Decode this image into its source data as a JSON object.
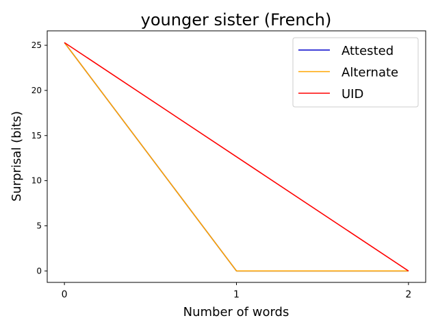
{
  "chart_data": {
    "type": "line",
    "title": "younger sister (French)",
    "xlabel": "Number of words",
    "ylabel": "Surprisal (bits)",
    "xlim": [
      -0.1,
      2.1
    ],
    "ylim": [
      -1.27,
      26.6
    ],
    "xticks": [
      0,
      1,
      2
    ],
    "xtick_labels": [
      "0",
      "1",
      "2"
    ],
    "yticks": [
      0,
      5,
      10,
      15,
      20,
      25
    ],
    "ytick_labels": [
      "0",
      "5",
      "10",
      "15",
      "20",
      "25"
    ],
    "grid": false,
    "legend_position": "top-right",
    "series": [
      {
        "name": "Attested",
        "color": "#0000cc",
        "x": [
          0,
          1,
          2
        ],
        "y": [
          25.3,
          0,
          0
        ]
      },
      {
        "name": "Alternate",
        "color": "#ffa500",
        "x": [
          0,
          1,
          2
        ],
        "y": [
          25.3,
          0,
          0
        ]
      },
      {
        "name": "UID",
        "color": "#ff0000",
        "x": [
          0,
          1,
          2
        ],
        "y": [
          25.3,
          12.65,
          0
        ]
      }
    ]
  }
}
